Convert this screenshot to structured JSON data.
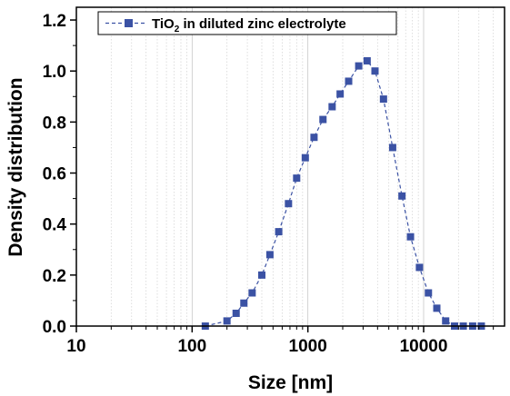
{
  "chart_data": {
    "type": "scatter",
    "xlabel": "Size [nm]",
    "ylabel": "Density distribution",
    "x_scale": "log",
    "xlim": [
      10,
      50000
    ],
    "ylim": [
      0,
      1.25
    ],
    "x_ticks": [
      10,
      100,
      1000,
      10000
    ],
    "x_tick_labels": [
      "10",
      "100",
      "1000",
      "10000"
    ],
    "y_ticks": [
      0,
      0.2,
      0.4,
      0.6,
      0.8,
      1.0,
      1.2
    ],
    "y_tick_labels": [
      "0.0",
      "0.2",
      "0.4",
      "0.6",
      "0.8",
      "1.0",
      "1.2"
    ],
    "grid": "vertical minor gridlines (dotted)",
    "legend_position": "top-left",
    "series": [
      {
        "name": "TiO₂ in diluted zinc electrolyte",
        "color": "#3b52a4",
        "marker": "square",
        "line": "dashed",
        "x": [
          130,
          200,
          240,
          280,
          330,
          400,
          470,
          560,
          680,
          800,
          950,
          1130,
          1350,
          1620,
          1900,
          2250,
          2750,
          3250,
          3800,
          4500,
          5400,
          6500,
          7700,
          9200,
          11000,
          13000,
          15500,
          18500,
          22000,
          26500,
          31500
        ],
        "y": [
          0.0,
          0.02,
          0.05,
          0.09,
          0.13,
          0.2,
          0.28,
          0.37,
          0.48,
          0.58,
          0.66,
          0.74,
          0.81,
          0.86,
          0.91,
          0.96,
          1.02,
          1.04,
          1.0,
          0.89,
          0.7,
          0.51,
          0.35,
          0.23,
          0.13,
          0.07,
          0.02,
          0.0,
          0.0,
          0.0,
          0.0
        ]
      }
    ]
  },
  "legend": {
    "text_prefix": "TiO",
    "text_subscript": "2",
    "text_suffix": " in diluted zinc electrolyte"
  }
}
